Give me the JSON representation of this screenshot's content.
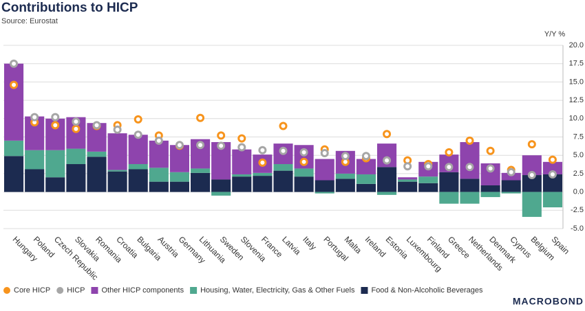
{
  "chart_data": {
    "type": "bar",
    "stacked": true,
    "title": "Contributions to HICP",
    "subtitle": "Source: Eurostat",
    "y_label": "Y/Y %",
    "logo": "MACROBOND",
    "categories": [
      "Hungary",
      "Poland",
      "Czech Republic",
      "Slovakia",
      "Romania",
      "Croatia",
      "Bulgaria",
      "Austria",
      "Germany",
      "Lithuania",
      "Sweden",
      "Slovenia",
      "France",
      "Latvia",
      "Italy",
      "Portugal",
      "Malta",
      "Ireland",
      "Estonia",
      "Luxembourg",
      "Finland",
      "Greece",
      "Netherlands",
      "Denmark",
      "Cyprus",
      "Belgium",
      "Spain"
    ],
    "series": [
      {
        "name": "Core HICP",
        "type": "scatter",
        "color": "#f7941d",
        "values": [
          14.6,
          9.5,
          9.1,
          8.6,
          9.0,
          9.1,
          9.9,
          7.7,
          6.3,
          10.1,
          7.7,
          7.3,
          4.0,
          9.0,
          4.1,
          5.8,
          4.1,
          4.6,
          7.9,
          4.3,
          3.8,
          5.4,
          7.0,
          5.6,
          3.0,
          6.5,
          4.4
        ]
      },
      {
        "name": "HICP",
        "type": "scatter",
        "color": "#a6a6a6",
        "values": [
          17.5,
          10.2,
          10.2,
          9.6,
          9.1,
          8.5,
          7.8,
          7.0,
          6.4,
          6.4,
          6.3,
          6.1,
          5.7,
          5.6,
          5.4,
          5.3,
          4.9,
          4.9,
          4.3,
          3.5,
          3.5,
          3.4,
          3.4,
          3.2,
          2.7,
          2.3,
          2.4
        ]
      },
      {
        "name": "Other HICP components",
        "type": "bar",
        "color": "#8e44ad",
        "values": [
          10.5,
          4.6,
          4.3,
          4.3,
          3.9,
          5.0,
          4.0,
          3.7,
          3.7,
          4.0,
          5.1,
          3.4,
          2.5,
          2.8,
          3.2,
          2.9,
          3.1,
          2.1,
          3.2,
          0.3,
          2.0,
          2.4,
          5.0,
          3.0,
          1.0,
          2.7,
          1.7
        ]
      },
      {
        "name": "Housing, Water, Electricity, Gas & Other Fuels",
        "type": "bar",
        "color": "#4fa88f",
        "values": [
          2.1,
          2.6,
          3.7,
          2.1,
          0.7,
          0.2,
          0.7,
          1.9,
          1.3,
          0.6,
          -0.5,
          0.3,
          0.4,
          0.9,
          1.1,
          -0.2,
          0.7,
          1.3,
          -0.4,
          0.3,
          0.9,
          -1.6,
          -1.6,
          -0.7,
          -0.2,
          -3.4,
          -2.1
        ]
      },
      {
        "name": "Food & Non-Alcoholic Beverages",
        "type": "bar",
        "color": "#1c2b50",
        "values": [
          4.9,
          3.1,
          2.0,
          3.8,
          4.8,
          2.8,
          3.1,
          1.4,
          1.4,
          2.6,
          1.7,
          2.1,
          2.2,
          2.9,
          2.1,
          1.6,
          1.8,
          1.1,
          3.4,
          1.4,
          1.2,
          2.7,
          1.8,
          0.9,
          1.6,
          2.3,
          2.4
        ]
      }
    ],
    "ylim": [
      -5,
      20
    ],
    "yticks": [
      {
        "value": -5,
        "label": "-5.0"
      },
      {
        "value": -2.5,
        "label": "-2.5"
      },
      {
        "value": 0,
        "label": "0.0"
      },
      {
        "value": 2.5,
        "label": "2.5"
      },
      {
        "value": 5,
        "label": "5.0"
      },
      {
        "value": 7.5,
        "label": "7.5"
      },
      {
        "value": 10,
        "label": "10.0"
      },
      {
        "value": 12.5,
        "label": "12.5"
      },
      {
        "value": 15,
        "label": "15.0"
      },
      {
        "value": 17.5,
        "label": "17.5"
      },
      {
        "value": 20,
        "label": "20.0"
      }
    ],
    "grid": true
  }
}
